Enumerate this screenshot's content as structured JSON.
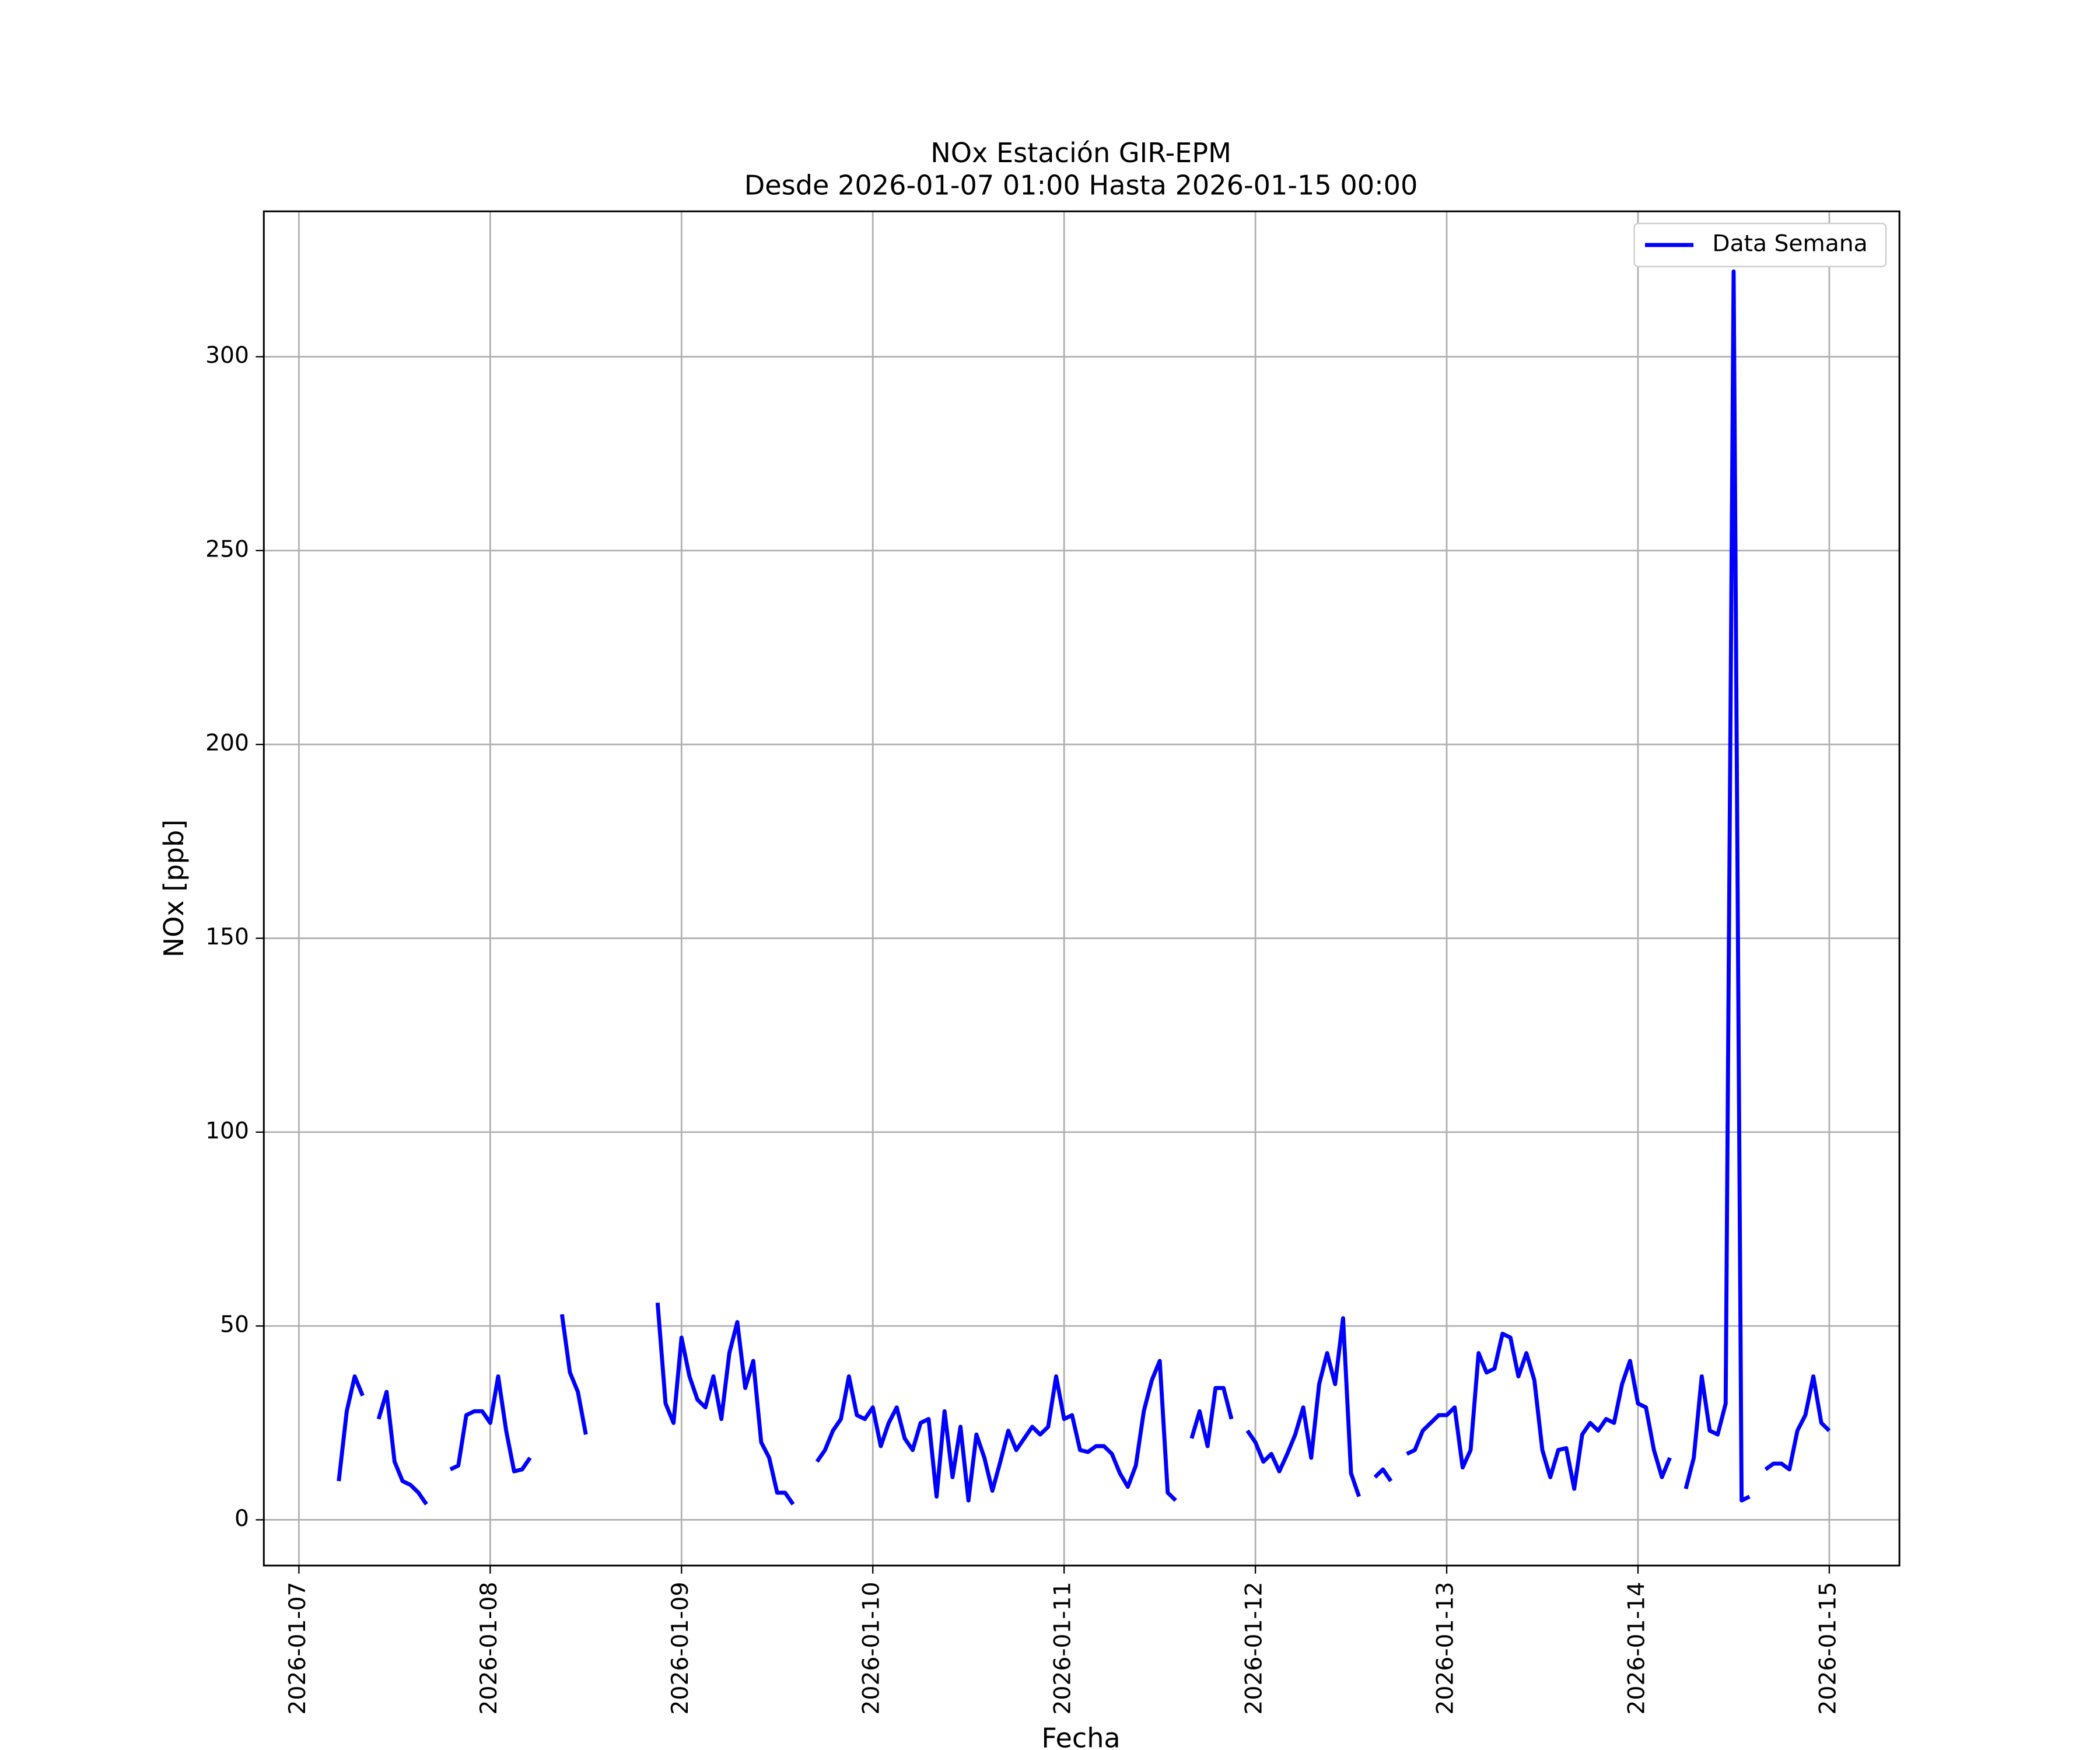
{
  "chart_data": {
    "type": "line",
    "title": "NOx Estación GIR-EPM",
    "subtitle": "Desde 2026-01-07 01:00 Hasta 2026-01-15 00:00",
    "xlabel": "Fecha",
    "ylabel": "NOx [ppb]",
    "x": [
      "2026-01-07 01:00",
      "2026-01-07 02:00",
      "2026-01-07 03:00",
      "2026-01-07 04:00",
      "2026-01-07 05:00",
      "2026-01-07 06:00",
      "2026-01-07 07:00",
      "2026-01-07 08:00",
      "2026-01-07 09:00",
      "2026-01-07 10:00",
      "2026-01-07 11:00",
      "2026-01-07 12:00",
      "2026-01-07 13:00",
      "2026-01-07 14:00",
      "2026-01-07 15:00",
      "2026-01-07 16:00",
      "2026-01-07 17:00",
      "2026-01-07 18:00",
      "2026-01-07 19:00",
      "2026-01-07 20:00",
      "2026-01-07 21:00",
      "2026-01-07 22:00",
      "2026-01-07 23:00",
      "2026-01-08 00:00",
      "2026-01-08 01:00",
      "2026-01-08 02:00",
      "2026-01-08 03:00",
      "2026-01-08 04:00",
      "2026-01-08 05:00",
      "2026-01-08 06:00",
      "2026-01-08 07:00",
      "2026-01-08 08:00",
      "2026-01-08 09:00",
      "2026-01-08 10:00",
      "2026-01-08 11:00",
      "2026-01-08 12:00",
      "2026-01-08 13:00",
      "2026-01-08 14:00",
      "2026-01-08 15:00",
      "2026-01-08 16:00",
      "2026-01-08 17:00",
      "2026-01-08 18:00",
      "2026-01-08 19:00",
      "2026-01-08 20:00",
      "2026-01-08 21:00",
      "2026-01-08 22:00",
      "2026-01-08 23:00",
      "2026-01-09 00:00",
      "2026-01-09 01:00",
      "2026-01-09 02:00",
      "2026-01-09 03:00",
      "2026-01-09 04:00",
      "2026-01-09 05:00",
      "2026-01-09 06:00",
      "2026-01-09 07:00",
      "2026-01-09 08:00",
      "2026-01-09 09:00",
      "2026-01-09 10:00",
      "2026-01-09 11:00",
      "2026-01-09 12:00",
      "2026-01-09 13:00",
      "2026-01-09 14:00",
      "2026-01-09 15:00",
      "2026-01-09 16:00",
      "2026-01-09 17:00",
      "2026-01-09 18:00",
      "2026-01-09 19:00",
      "2026-01-09 20:00",
      "2026-01-09 21:00",
      "2026-01-09 22:00",
      "2026-01-09 23:00",
      "2026-01-10 00:00",
      "2026-01-10 01:00",
      "2026-01-10 02:00",
      "2026-01-10 03:00",
      "2026-01-10 04:00",
      "2026-01-10 05:00",
      "2026-01-10 06:00",
      "2026-01-10 07:00",
      "2026-01-10 08:00",
      "2026-01-10 09:00",
      "2026-01-10 10:00",
      "2026-01-10 11:00",
      "2026-01-10 12:00",
      "2026-01-10 13:00",
      "2026-01-10 14:00",
      "2026-01-10 15:00",
      "2026-01-10 16:00",
      "2026-01-10 17:00",
      "2026-01-10 18:00",
      "2026-01-10 19:00",
      "2026-01-10 20:00",
      "2026-01-10 21:00",
      "2026-01-10 22:00",
      "2026-01-10 23:00",
      "2026-01-11 00:00",
      "2026-01-11 01:00",
      "2026-01-11 02:00",
      "2026-01-11 03:00",
      "2026-01-11 04:00",
      "2026-01-11 05:00",
      "2026-01-11 06:00",
      "2026-01-11 07:00",
      "2026-01-11 08:00",
      "2026-01-11 09:00",
      "2026-01-11 10:00",
      "2026-01-11 11:00",
      "2026-01-11 12:00",
      "2026-01-11 13:00",
      "2026-01-11 14:00",
      "2026-01-11 15:00",
      "2026-01-11 16:00",
      "2026-01-11 17:00",
      "2026-01-11 18:00",
      "2026-01-11 19:00",
      "2026-01-11 20:00",
      "2026-01-11 21:00",
      "2026-01-11 22:00",
      "2026-01-11 23:00",
      "2026-01-12 00:00",
      "2026-01-12 01:00",
      "2026-01-12 02:00",
      "2026-01-12 03:00",
      "2026-01-12 04:00",
      "2026-01-12 05:00",
      "2026-01-12 06:00",
      "2026-01-12 07:00",
      "2026-01-12 08:00",
      "2026-01-12 09:00",
      "2026-01-12 10:00",
      "2026-01-12 11:00",
      "2026-01-12 12:00",
      "2026-01-12 13:00",
      "2026-01-12 14:00",
      "2026-01-12 15:00",
      "2026-01-12 16:00",
      "2026-01-12 17:00",
      "2026-01-12 18:00",
      "2026-01-12 19:00",
      "2026-01-12 20:00",
      "2026-01-12 21:00",
      "2026-01-12 22:00",
      "2026-01-12 23:00",
      "2026-01-13 00:00",
      "2026-01-13 01:00",
      "2026-01-13 02:00",
      "2026-01-13 03:00",
      "2026-01-13 04:00",
      "2026-01-13 05:00",
      "2026-01-13 06:00",
      "2026-01-13 07:00",
      "2026-01-13 08:00",
      "2026-01-13 09:00",
      "2026-01-13 10:00",
      "2026-01-13 11:00",
      "2026-01-13 12:00",
      "2026-01-13 13:00",
      "2026-01-13 14:00",
      "2026-01-13 15:00",
      "2026-01-13 16:00",
      "2026-01-13 17:00",
      "2026-01-13 18:00",
      "2026-01-13 19:00",
      "2026-01-13 20:00",
      "2026-01-13 21:00",
      "2026-01-13 22:00",
      "2026-01-13 23:00",
      "2026-01-14 00:00",
      "2026-01-14 01:00",
      "2026-01-14 02:00",
      "2026-01-14 03:00",
      "2026-01-14 04:00",
      "2026-01-14 05:00",
      "2026-01-14 06:00",
      "2026-01-14 07:00",
      "2026-01-14 08:00",
      "2026-01-14 09:00",
      "2026-01-14 10:00",
      "2026-01-14 11:00",
      "2026-01-14 12:00",
      "2026-01-14 13:00",
      "2026-01-14 14:00",
      "2026-01-14 15:00",
      "2026-01-14 16:00",
      "2026-01-14 17:00",
      "2026-01-14 18:00",
      "2026-01-14 19:00",
      "2026-01-14 20:00",
      "2026-01-14 21:00",
      "2026-01-14 22:00",
      "2026-01-14 23:00",
      "2026-01-15 00:00"
    ],
    "series": [
      {
        "name": "Data Semana",
        "color": "#0000ff",
        "values": [
          null,
          null,
          null,
          null,
          10,
          28,
          37,
          32,
          null,
          26,
          33,
          15,
          10,
          9,
          7,
          4,
          null,
          null,
          13,
          14,
          27,
          28,
          28,
          25,
          37,
          23,
          12.5,
          13,
          16,
          null,
          null,
          null,
          53,
          38,
          33,
          22,
          null,
          null,
          null,
          null,
          null,
          null,
          null,
          null,
          56,
          30,
          25,
          47,
          37,
          31,
          29,
          37,
          26,
          43,
          51,
          34,
          41,
          20,
          16,
          7,
          7,
          4,
          null,
          null,
          15,
          18,
          23,
          26,
          37,
          27,
          26,
          29,
          19,
          25,
          29,
          21,
          18,
          25,
          26,
          6,
          28,
          11,
          24,
          5,
          22,
          16,
          7.5,
          15,
          23,
          18,
          21,
          24,
          22,
          24,
          37,
          26,
          27,
          18,
          17.5,
          19,
          19,
          17,
          12,
          8.5,
          14,
          28,
          36,
          41,
          7,
          5,
          null,
          21,
          28,
          19,
          34,
          34,
          26,
          null,
          23,
          20,
          15,
          17,
          12.5,
          17,
          22,
          29,
          16,
          35,
          43,
          35,
          52,
          12,
          6,
          null,
          11,
          13,
          10,
          null,
          17,
          18,
          23,
          25,
          27,
          27,
          29,
          13.5,
          18,
          43,
          38,
          39,
          48,
          47,
          37,
          43,
          36,
          18,
          11,
          18,
          18.5,
          8,
          22,
          25,
          23,
          26,
          25,
          35,
          41,
          30,
          29,
          18,
          11,
          16,
          null,
          8,
          16,
          37,
          23,
          22,
          30,
          322,
          5,
          6,
          null,
          13,
          14.5,
          14.5,
          13,
          23,
          27,
          37,
          25,
          23
        ]
      }
    ],
    "xlim": [
      "2026-01-06 19:36",
      "2026-01-15 08:48"
    ],
    "xticks": [
      "2026-01-07",
      "2026-01-08",
      "2026-01-09",
      "2026-01-10",
      "2026-01-11",
      "2026-01-12",
      "2026-01-13",
      "2026-01-14",
      "2026-01-15"
    ],
    "ylim": [
      -11.8,
      337.5
    ],
    "yticks": [
      0,
      50,
      100,
      150,
      200,
      250,
      300
    ],
    "grid": true,
    "legend": "upper right"
  }
}
